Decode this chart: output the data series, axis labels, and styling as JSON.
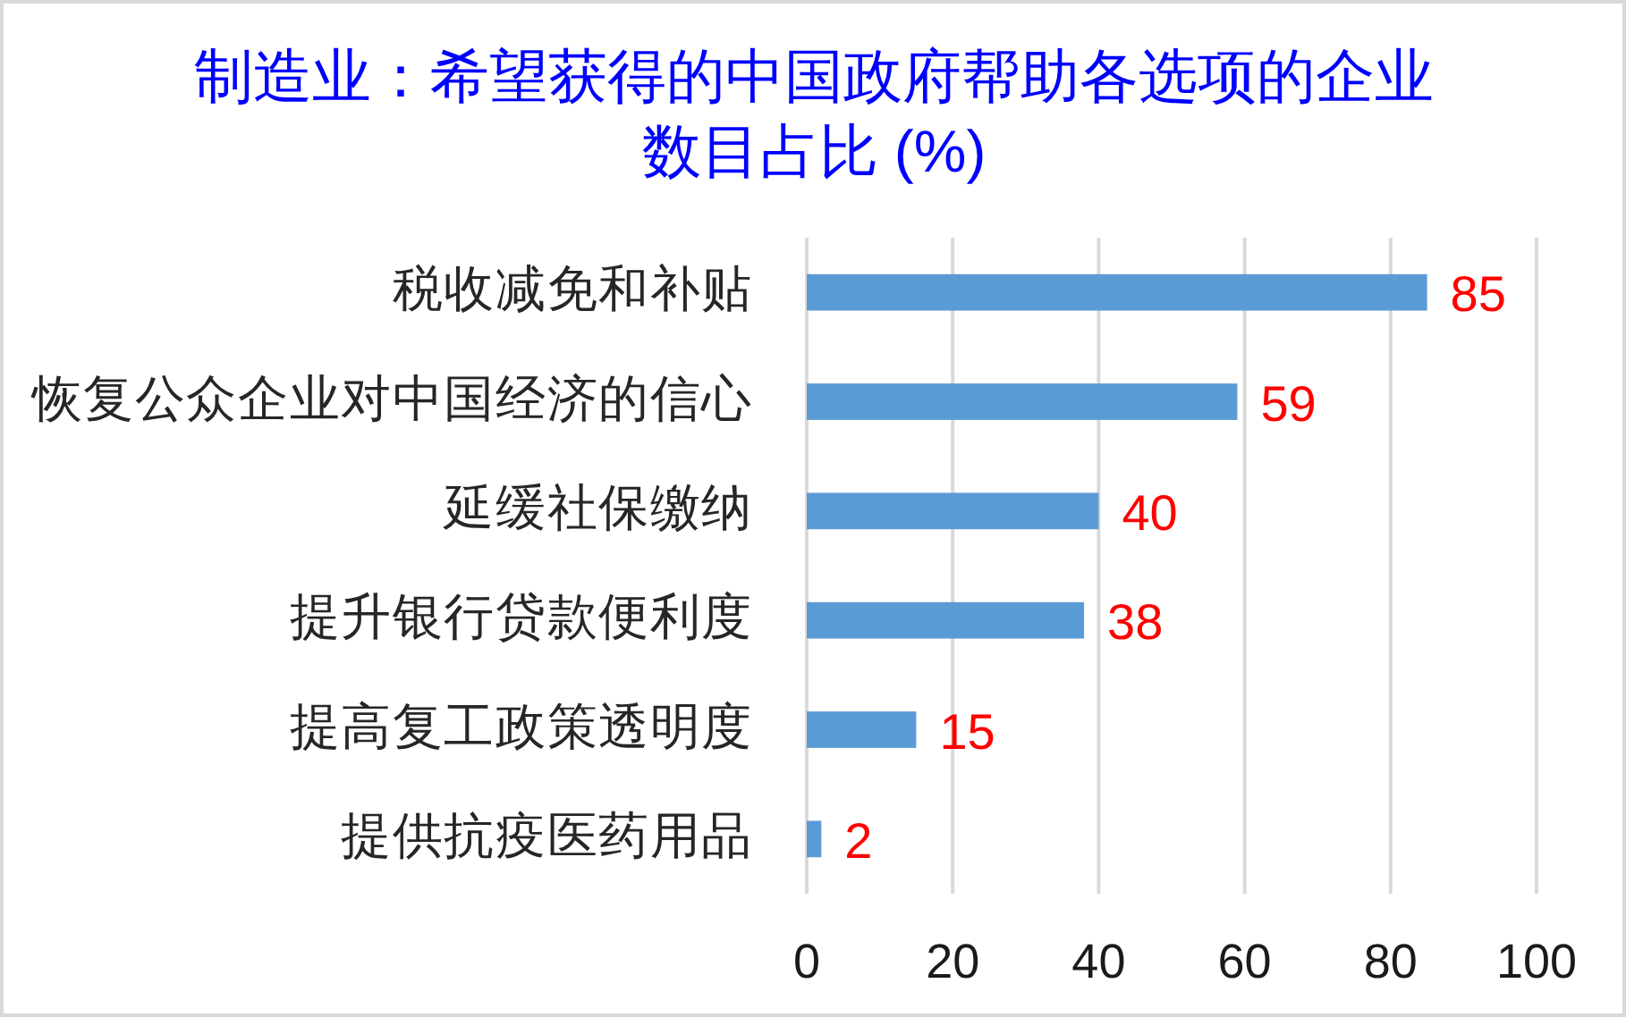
{
  "chart_data": {
    "type": "bar",
    "orientation": "horizontal",
    "title": "制造业：希望获得的中国政府帮助各选项的企业数目占比 (%)",
    "categories": [
      "税收减免和补贴",
      "恢复公众企业对中国经济的信心",
      "延缓社保缴纳",
      "提升银行贷款便利度",
      "提高复工政策透明度",
      "提供抗疫医药用品"
    ],
    "values": [
      85,
      59,
      40,
      38,
      15,
      2
    ],
    "color": "#5b9bd5",
    "xlim": [
      0,
      100
    ],
    "xticks": [
      0,
      20,
      40,
      60,
      80,
      100
    ],
    "grid": "x",
    "data_labels": true
  }
}
